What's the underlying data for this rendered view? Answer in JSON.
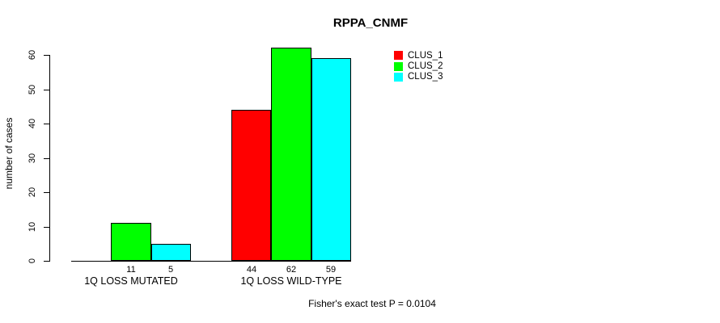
{
  "title": "RPPA_CNMF",
  "footer": "Fisher's exact test P = 0.0104",
  "y_axis": {
    "label": "number of cases",
    "ticks": [
      0,
      10,
      20,
      30,
      40,
      50,
      60
    ]
  },
  "legend": {
    "items": [
      {
        "label": "CLUS_1",
        "color": "#ff0000"
      },
      {
        "label": "CLUS_2",
        "color": "#00ff00"
      },
      {
        "label": "CLUS_3",
        "color": "#00ffff"
      }
    ]
  },
  "chart_data": {
    "type": "bar",
    "title": "RPPA_CNMF",
    "xlabel": "",
    "ylabel": "number of cases",
    "ylim": [
      0,
      60
    ],
    "grid": false,
    "legend_position": "top-right",
    "categories": [
      "1Q LOSS MUTATED",
      "1Q LOSS WILD-TYPE"
    ],
    "series": [
      {
        "name": "CLUS_1",
        "color": "#ff0000",
        "values": [
          0,
          44
        ]
      },
      {
        "name": "CLUS_2",
        "color": "#00ff00",
        "values": [
          11,
          62
        ]
      },
      {
        "name": "CLUS_3",
        "color": "#00ffff",
        "values": [
          5,
          59
        ]
      }
    ],
    "bar_value_labels": [
      [
        "",
        "11",
        "5"
      ],
      [
        "44",
        "62",
        "59"
      ]
    ],
    "annotation": "Fisher's exact test P = 0.0104"
  }
}
